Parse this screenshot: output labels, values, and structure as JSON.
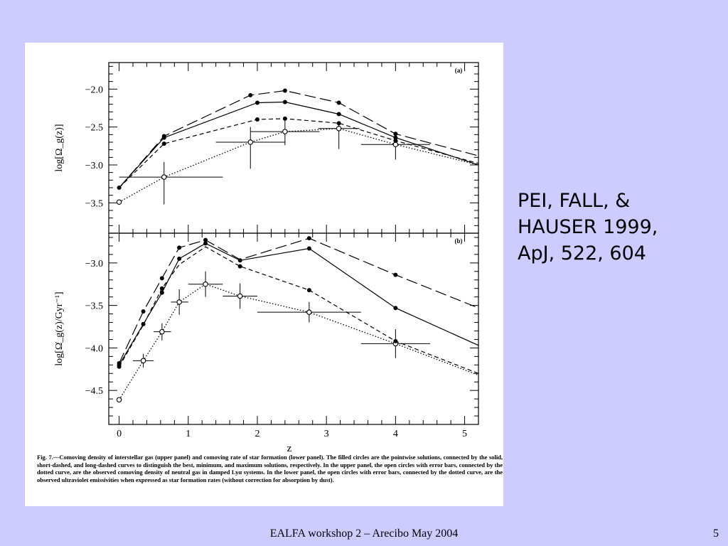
{
  "slide": {
    "citation_lines": [
      "PEI,  FALL, &",
      "HAUSER 1999,",
      "ApJ, 522, 604"
    ],
    "footer_text": "EALFA workshop 2 – Arecibo May 2004",
    "page_number": "5",
    "background_color": "#ccccff"
  },
  "figure": {
    "caption": "Fig. 7.—Comoving density of interstellar gas (upper panel) and comoving rate of star formation (lower panel). The filled circles are the pointwise solutions, connected by the solid, short-dashed, and long-dashed curves to distinguish the best, minimum, and maximum solutions, respectively. In the upper panel, the open circles with error bars, connected by the dotted curve, are the observed comoving density of neutral gas in damped Lyα systems. In the lower panel, the open circles with error bars, connected by the dotted curve, are the observed ultraviolet emissivities when expressed as star formation rates (without correction for absorption by dust).",
    "xlabel": "z"
  },
  "chart_data": [
    {
      "type": "line",
      "panel_label": "(a)",
      "ylabel": "log[Ω_g(z)]",
      "xlabel": "",
      "xlim": [
        -0.15,
        5.2
      ],
      "ylim": [
        -3.9,
        -1.65
      ],
      "x_ticks": [
        0,
        1,
        2,
        3,
        4,
        5
      ],
      "y_ticks": [
        -3.5,
        -3.0,
        -2.5,
        -2.0
      ],
      "y_tick_labels": [
        "−3.5",
        "−3.0",
        "−2.5",
        "−2.0"
      ],
      "series": [
        {
          "style": "solid",
          "points": [
            [
              0,
              -3.3
            ],
            [
              0.65,
              -2.64
            ],
            [
              2.0,
              -2.18
            ],
            [
              2.4,
              -2.17
            ],
            [
              3.18,
              -2.33
            ],
            [
              4.0,
              -2.64
            ],
            [
              5.2,
              -3.0
            ]
          ]
        },
        {
          "style": "short-dashed",
          "points": [
            [
              0,
              -3.3
            ],
            [
              0.65,
              -2.72
            ],
            [
              2.0,
              -2.4
            ],
            [
              2.4,
              -2.39
            ],
            [
              3.18,
              -2.45
            ],
            [
              4.0,
              -2.68
            ],
            [
              5.2,
              -2.98
            ]
          ]
        },
        {
          "style": "long-dashed",
          "points": [
            [
              0,
              -3.3
            ],
            [
              0.65,
              -2.62
            ],
            [
              1.9,
              -2.08
            ],
            [
              2.4,
              -2.02
            ],
            [
              3.18,
              -2.18
            ],
            [
              4.0,
              -2.59
            ],
            [
              5.2,
              -2.88
            ]
          ]
        },
        {
          "style": "dotted",
          "points": [
            [
              0,
              -3.49
            ],
            [
              0.65,
              -3.16
            ],
            [
              1.9,
              -2.7
            ],
            [
              2.4,
              -2.56
            ],
            [
              3.18,
              -2.52
            ],
            [
              4.0,
              -2.73
            ],
            [
              5.2,
              -3.0
            ]
          ]
        }
      ],
      "filled_points": [
        [
          0,
          -3.3
        ],
        [
          0.65,
          -2.64
        ],
        [
          0.65,
          -2.72
        ],
        [
          0.65,
          -2.62
        ],
        [
          1.9,
          -2.08
        ],
        [
          2.0,
          -2.18
        ],
        [
          2.0,
          -2.4
        ],
        [
          2.4,
          -2.17
        ],
        [
          2.4,
          -2.39
        ],
        [
          2.4,
          -2.02
        ],
        [
          3.18,
          -2.33
        ],
        [
          3.18,
          -2.45
        ],
        [
          3.18,
          -2.18
        ],
        [
          4.0,
          -2.64
        ],
        [
          4.0,
          -2.68
        ],
        [
          4.0,
          -2.59
        ]
      ],
      "open_points": [
        {
          "x": 0,
          "y": -3.49,
          "xerr": [
            0,
            0
          ],
          "yerr": [
            0,
            0
          ]
        },
        {
          "x": 0.65,
          "y": -3.16,
          "xerr": [
            0.65,
            0.85
          ],
          "yerr": [
            0.36,
            0.2
          ]
        },
        {
          "x": 1.9,
          "y": -2.7,
          "xerr": [
            0.5,
            0.5
          ],
          "yerr": [
            0.35,
            0.2
          ]
        },
        {
          "x": 2.4,
          "y": -2.56,
          "xerr": [
            0.5,
            0.5
          ],
          "yerr": [
            0.18,
            0.17
          ]
        },
        {
          "x": 3.18,
          "y": -2.52,
          "xerr": [
            0.3,
            0.3
          ],
          "yerr": [
            0.27,
            0.08
          ]
        },
        {
          "x": 4.0,
          "y": -2.73,
          "xerr": [
            0.5,
            0.5
          ],
          "yerr": [
            0.2,
            0.1
          ]
        }
      ]
    },
    {
      "type": "line",
      "panel_label": "(b)",
      "ylabel": "log[Ω̇_g(z)/Gyr⁻¹]",
      "xlabel": "z",
      "xlim": [
        -0.15,
        5.2
      ],
      "ylim": [
        -4.9,
        -2.65
      ],
      "x_ticks": [
        0,
        1,
        2,
        3,
        4,
        5
      ],
      "x_tick_labels": [
        "0",
        "1",
        "2",
        "3",
        "4",
        "5"
      ],
      "y_ticks": [
        -4.5,
        -4.0,
        -3.5,
        -3.0
      ],
      "y_tick_labels": [
        "−4.5",
        "−4.0",
        "−3.5",
        "−3.0"
      ],
      "series": [
        {
          "style": "solid",
          "points": [
            [
              0,
              -4.2
            ],
            [
              0.35,
              -3.72
            ],
            [
              0.62,
              -3.35
            ],
            [
              0.87,
              -2.95
            ],
            [
              1.25,
              -2.77
            ],
            [
              1.75,
              -2.97
            ],
            [
              2.75,
              -2.83
            ],
            [
              4.0,
              -3.53
            ],
            [
              5.2,
              -3.97
            ]
          ]
        },
        {
          "style": "short-dashed",
          "points": [
            [
              0,
              -4.22
            ],
            [
              0.35,
              -3.73
            ],
            [
              0.62,
              -3.3
            ],
            [
              0.87,
              -3.02
            ],
            [
              1.25,
              -2.81
            ],
            [
              1.75,
              -3.04
            ],
            [
              2.75,
              -3.32
            ],
            [
              4.0,
              -3.92
            ],
            [
              5.2,
              -4.3
            ]
          ]
        },
        {
          "style": "long-dashed",
          "points": [
            [
              0,
              -4.18
            ],
            [
              0.35,
              -3.57
            ],
            [
              0.62,
              -3.18
            ],
            [
              0.87,
              -2.82
            ],
            [
              1.25,
              -2.73
            ],
            [
              1.75,
              -2.96
            ],
            [
              2.75,
              -2.71
            ],
            [
              4.0,
              -3.14
            ],
            [
              5.2,
              -3.53
            ]
          ]
        },
        {
          "style": "dotted",
          "points": [
            [
              0,
              -4.61
            ],
            [
              0.35,
              -4.15
            ],
            [
              0.62,
              -3.81
            ],
            [
              0.87,
              -3.46
            ],
            [
              1.25,
              -3.25
            ],
            [
              1.75,
              -3.39
            ],
            [
              2.75,
              -3.58
            ],
            [
              4.0,
              -3.95
            ],
            [
              5.2,
              -4.32
            ]
          ]
        }
      ],
      "filled_points": [
        [
          0,
          -4.2
        ],
        [
          0,
          -4.22
        ],
        [
          0,
          -4.18
        ],
        [
          0.35,
          -3.72
        ],
        [
          0.35,
          -3.57
        ],
        [
          0.62,
          -3.35
        ],
        [
          0.62,
          -3.3
        ],
        [
          0.62,
          -3.18
        ],
        [
          0.87,
          -2.95
        ],
        [
          0.87,
          -2.82
        ],
        [
          1.25,
          -2.77
        ],
        [
          1.25,
          -2.73
        ],
        [
          1.75,
          -2.97
        ],
        [
          1.75,
          -3.04
        ],
        [
          2.75,
          -2.83
        ],
        [
          2.75,
          -3.32
        ],
        [
          2.75,
          -2.71
        ],
        [
          4.0,
          -3.53
        ],
        [
          4.0,
          -3.92
        ],
        [
          4.0,
          -3.14
        ]
      ],
      "open_points": [
        {
          "x": 0,
          "y": -4.61,
          "xerr": [
            0,
            0
          ],
          "yerr": [
            0,
            0
          ]
        },
        {
          "x": 0.35,
          "y": -4.15,
          "xerr": [
            0.15,
            0.15
          ],
          "yerr": [
            0.08,
            0.08
          ]
        },
        {
          "x": 0.62,
          "y": -3.81,
          "xerr": [
            0.12,
            0.13
          ],
          "yerr": [
            0.1,
            0.1
          ]
        },
        {
          "x": 0.87,
          "y": -3.46,
          "xerr": [
            0.12,
            0.13
          ],
          "yerr": [
            0.15,
            0.15
          ]
        },
        {
          "x": 1.25,
          "y": -3.25,
          "xerr": [
            0.25,
            0.25
          ],
          "yerr": [
            0.15,
            0.15
          ]
        },
        {
          "x": 1.75,
          "y": -3.39,
          "xerr": [
            0.25,
            0.25
          ],
          "yerr": [
            0.15,
            0.15
          ]
        },
        {
          "x": 2.75,
          "y": -3.58,
          "xerr": [
            0.75,
            0.75
          ],
          "yerr": [
            0.12,
            0.12
          ]
        },
        {
          "x": 4.0,
          "y": -3.95,
          "xerr": [
            0.5,
            0.5
          ],
          "yerr": [
            0.17,
            0.17
          ]
        }
      ]
    }
  ]
}
